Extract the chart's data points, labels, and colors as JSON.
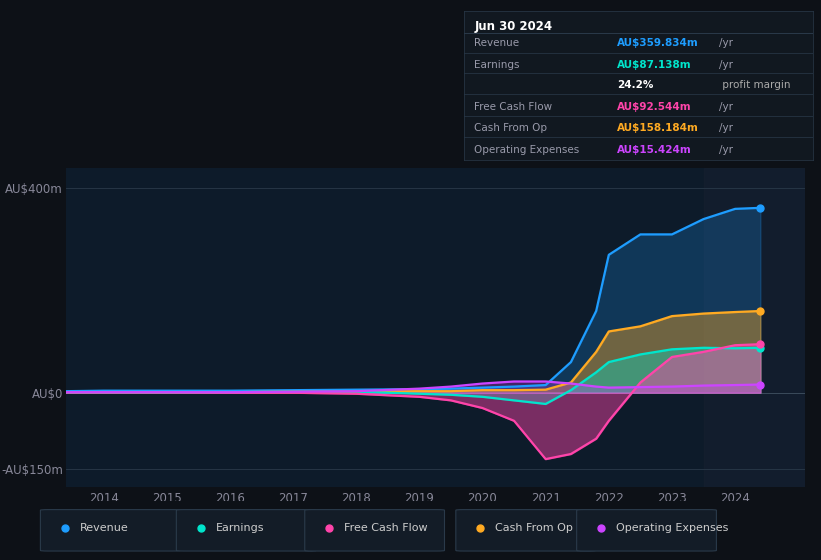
{
  "background_color": "#0d1117",
  "plot_bg_color": "#0d1b2a",
  "grid_color": "#263545",
  "title_box": {
    "date": "Jun 30 2024",
    "rows": [
      {
        "label": "Revenue",
        "value": "AU$359.834m",
        "unit": "/yr",
        "value_color": "#1e9dff"
      },
      {
        "label": "Earnings",
        "value": "AU$87.138m",
        "unit": "/yr",
        "value_color": "#00e5cc"
      },
      {
        "label": "",
        "value": "24.2%",
        "unit": " profit margin",
        "value_color": "#ffffff",
        "unit_color": "#aaaaaa"
      },
      {
        "label": "Free Cash Flow",
        "value": "AU$92.544m",
        "unit": "/yr",
        "value_color": "#ff44aa"
      },
      {
        "label": "Cash From Op",
        "value": "AU$158.184m",
        "unit": "/yr",
        "value_color": "#ffaa22"
      },
      {
        "label": "Operating Expenses",
        "value": "AU$15.424m",
        "unit": "/yr",
        "value_color": "#cc44ff"
      }
    ]
  },
  "years": [
    2013.4,
    2014,
    2015,
    2016,
    2017,
    2018,
    2019,
    2019.5,
    2020,
    2020.5,
    2021,
    2021.4,
    2021.8,
    2022,
    2022.5,
    2023,
    2023.5,
    2024,
    2024.4
  ],
  "revenue": [
    3,
    4,
    4,
    4,
    5,
    6,
    7,
    8,
    10,
    12,
    15,
    60,
    160,
    270,
    310,
    310,
    340,
    360,
    362
  ],
  "earnings": [
    1,
    1,
    1,
    1,
    2,
    2,
    -2,
    -4,
    -8,
    -15,
    -22,
    5,
    40,
    60,
    75,
    85,
    88,
    87,
    88
  ],
  "free_cf": [
    1,
    1,
    1,
    0,
    0,
    -2,
    -8,
    -15,
    -30,
    -55,
    -130,
    -120,
    -90,
    -55,
    20,
    70,
    80,
    93,
    95
  ],
  "cash_from_op": [
    1,
    1,
    1,
    1,
    2,
    2,
    3,
    3,
    5,
    5,
    6,
    20,
    80,
    120,
    130,
    150,
    155,
    158,
    160
  ],
  "opex": [
    1,
    1,
    1,
    1,
    2,
    3,
    8,
    12,
    18,
    22,
    22,
    18,
    12,
    10,
    11,
    12,
    14,
    15,
    16
  ],
  "yticks": [
    400,
    0,
    -150
  ],
  "ytick_labels": [
    "AU$400m",
    "AU$0",
    "-AU$150m"
  ],
  "xtick_years": [
    2014,
    2015,
    2016,
    2017,
    2018,
    2019,
    2020,
    2021,
    2022,
    2023,
    2024
  ],
  "ylim": [
    -185,
    440
  ],
  "xlim": [
    2013.4,
    2025.1
  ],
  "legend": [
    {
      "label": "Revenue",
      "color": "#1e9dff"
    },
    {
      "label": "Earnings",
      "color": "#00e5cc"
    },
    {
      "label": "Free Cash Flow",
      "color": "#ff44aa"
    },
    {
      "label": "Cash From Op",
      "color": "#ffaa22"
    },
    {
      "label": "Operating Expenses",
      "color": "#cc44ff"
    }
  ]
}
